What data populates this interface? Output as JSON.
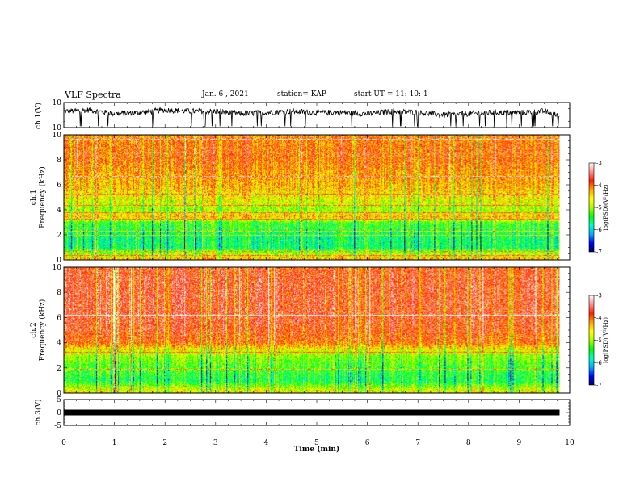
{
  "header": {
    "title": "VLF Spectra",
    "date": "Jan. 6 , 2021",
    "station": "station= KAP",
    "start_time": "start UT = 11: 10: 1"
  },
  "chart_data": [
    {
      "type": "line",
      "panel": "ch1-waveform",
      "ylabel": "ch.1(V)",
      "ylim": [
        -10,
        10
      ],
      "ytick_labels": [
        "10",
        "-10"
      ],
      "xlim": [
        0,
        10
      ],
      "x_unit": "min",
      "description_trace": "noisy waveform around +2 V",
      "x": [
        0.0,
        0.5,
        1.0,
        1.5,
        2.0,
        2.5,
        3.0,
        3.5,
        4.0,
        4.5,
        5.0,
        5.5,
        6.0,
        6.5,
        7.0,
        7.5,
        8.0,
        8.5,
        9.0,
        9.5,
        9.8
      ],
      "y": [
        3,
        4,
        1,
        2,
        4,
        3,
        3,
        1,
        2,
        3,
        2,
        2,
        1,
        3,
        2,
        0,
        1,
        2,
        2,
        3,
        -1
      ]
    },
    {
      "type": "heatmap",
      "panel": "ch1-spectrogram",
      "ylabel": "ch.1 Frequency (kHz)",
      "ylim": [
        0,
        10
      ],
      "ytick_labels": [
        "0",
        "2",
        "4",
        "6",
        "8",
        "10"
      ],
      "xlim": [
        0,
        9.8
      ],
      "colorbar": {
        "label": "log(PSD)(V²/Hz)",
        "range": [
          -7,
          -3
        ],
        "tick_labels": [
          "-3",
          "-4",
          "-5",
          "-6",
          "-7"
        ]
      },
      "freq_profile_kHz": [
        0,
        1,
        2,
        3,
        3.5,
        4,
        5,
        6,
        7,
        8,
        9,
        10
      ],
      "freq_profile_log_psd": [
        -4.2,
        -5.6,
        -5.6,
        -5.3,
        -4.3,
        -5.0,
        -4.6,
        -4.3,
        -4.2,
        -4.0,
        -4.0,
        -4.1
      ],
      "lines_kHz": [
        0.4,
        0.7,
        2.0,
        2.3,
        2.6,
        3.3,
        3.8,
        4.4,
        5.3,
        5.6,
        6.7,
        8.6,
        9.7
      ]
    },
    {
      "type": "heatmap",
      "panel": "ch2-spectrogram",
      "ylabel": "ch.2 Frequency (kHz)",
      "ylim": [
        0,
        10
      ],
      "ytick_labels": [
        "0",
        "2",
        "4",
        "6",
        "8",
        "10"
      ],
      "xlim": [
        0,
        9.8
      ],
      "colorbar": {
        "label": "log(PSD)(V²/Hz)",
        "range": [
          -7,
          -3
        ],
        "tick_labels": [
          "-3",
          "-4",
          "-5",
          "-6",
          "-7"
        ]
      },
      "freq_profile_kHz": [
        0,
        1,
        2,
        3,
        3.5,
        4,
        5,
        6,
        7,
        8,
        9,
        10
      ],
      "freq_profile_log_psd": [
        -4.5,
        -5.5,
        -5.3,
        -5.0,
        -4.6,
        -4.0,
        -3.8,
        -3.7,
        -3.7,
        -3.7,
        -3.7,
        -3.8
      ],
      "lines_kHz": [
        0.5,
        1.9,
        3.3,
        6.2
      ]
    },
    {
      "type": "line",
      "panel": "ch3-waveform",
      "ylabel": "ch.3(V)",
      "ylim": [
        -5,
        5
      ],
      "ytick_labels": [
        "5",
        "0",
        "-5"
      ],
      "xlim": [
        0,
        10
      ],
      "x": [
        0,
        9.8
      ],
      "y": [
        0,
        0
      ],
      "xlabel": "Time (min)",
      "xtick_labels": [
        "0",
        "1",
        "2",
        "3",
        "4",
        "5",
        "6",
        "7",
        "8",
        "9",
        "10"
      ]
    }
  ],
  "colors": {
    "axis": "#000000",
    "trace": "#000000",
    "colormap": [
      "#000060",
      "#0000ff",
      "#00b0ff",
      "#00ffc0",
      "#00ff00",
      "#b0ff00",
      "#ffff00",
      "#ffa000",
      "#ff2000",
      "#ff9090",
      "#ffffff"
    ]
  }
}
